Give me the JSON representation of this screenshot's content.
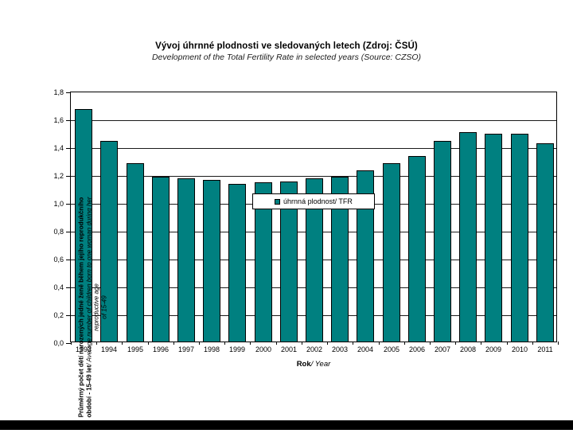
{
  "title": {
    "cz": "Vývoj úhrnné plodnosti ve sledovaných letech (Zdroj: ČSÚ)",
    "en": "Development of the Total Fertility Rate in selected years (Source: CZSO)"
  },
  "legend": {
    "label": "úhrnná plodnost/ TFR",
    "marker_color": "#008080"
  },
  "y_axis": {
    "label_line1_bold": "Průměrný počet dětí narozených jedné ženě během jejího reprodukčního",
    "label_line2_bold": "období - 15-49 let",
    "label_line2_italic": "/ Average number of children born to one woman during her",
    "label_line3_italic": "reproductive age",
    "label_line4_italic": "of 15-49",
    "tick_labels": [
      "0,0",
      "0,2",
      "0,4",
      "0,6",
      "0,8",
      "1,0",
      "1,2",
      "1,4",
      "1,6",
      "1,8"
    ]
  },
  "x_axis": {
    "label_bold": "Rok",
    "label_italic": "/ Year"
  },
  "chart_data": {
    "type": "bar",
    "title": "Vývoj úhrnné plodnosti ve sledovaných letech (Zdroj: ČSÚ)",
    "subtitle": "Development of the Total Fertility Rate in selected years (Source: CZSO)",
    "categories": [
      "1993",
      "1994",
      "1995",
      "1996",
      "1997",
      "1998",
      "1999",
      "2000",
      "2001",
      "2002",
      "2003",
      "2004",
      "2005",
      "2006",
      "2007",
      "2008",
      "2009",
      "2010",
      "2011"
    ],
    "series": [
      {
        "name": "úhrnná plodnost/ TFR",
        "values": [
          1.67,
          1.44,
          1.28,
          1.18,
          1.17,
          1.16,
          1.13,
          1.14,
          1.15,
          1.17,
          1.18,
          1.23,
          1.28,
          1.33,
          1.44,
          1.5,
          1.49,
          1.49,
          1.42
        ]
      }
    ],
    "xlabel": "Rok/ Year",
    "ylabel": "Průměrný počet dětí narozených jedné ženě během jejího reprodukčního období - 15-49 let/ Average number of children born to one woman during her reproductive age of 15-49",
    "ylim": [
      0,
      1.8
    ],
    "ytick_step": 0.2,
    "grid": true,
    "legend_position": "top-center-inside",
    "bar_color": "#008080",
    "bar_border_color": "#000000"
  }
}
